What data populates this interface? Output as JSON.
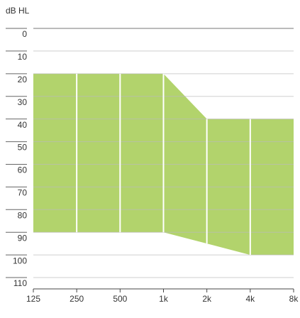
{
  "chart_data": {
    "type": "range-area",
    "y_label": "dB HL",
    "x": [
      125,
      250,
      500,
      1000,
      2000,
      4000,
      8000
    ],
    "top": [
      20,
      20,
      20,
      20,
      40,
      40,
      40
    ],
    "bottom": [
      90,
      90,
      90,
      90,
      95,
      100,
      100
    ],
    "color": "#b2d36c",
    "xlim": [
      125,
      8000
    ],
    "x_log": true,
    "xticks": [
      125,
      250,
      500,
      {
        "value": 1000,
        "label": "1k"
      },
      {
        "value": 2000,
        "label": "2k"
      },
      {
        "value": 4000,
        "label": "4k"
      },
      {
        "value": 8000,
        "label": "8k"
      }
    ],
    "ylim": [
      0,
      115
    ],
    "y_inverted": true,
    "yticks": [
      0,
      10,
      20,
      30,
      40,
      50,
      60,
      70,
      80,
      90,
      100,
      110
    ],
    "grid": true
  }
}
